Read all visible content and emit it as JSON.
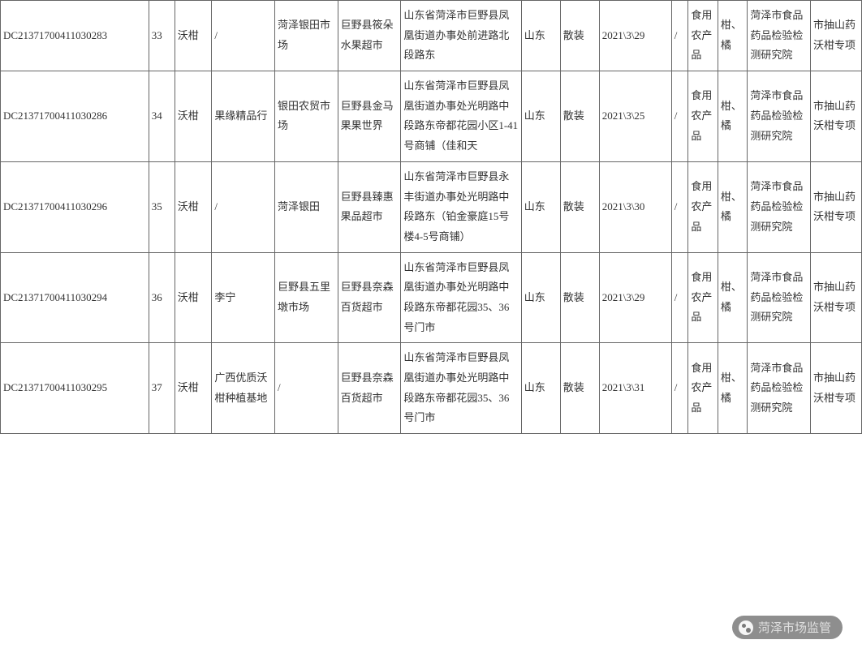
{
  "watermark": {
    "label": "菏泽市场监管"
  },
  "table": {
    "columns": [
      {
        "class": "col-0"
      },
      {
        "class": "col-1"
      },
      {
        "class": "col-2"
      },
      {
        "class": "col-3"
      },
      {
        "class": "col-4"
      },
      {
        "class": "col-5"
      },
      {
        "class": "col-6"
      },
      {
        "class": "col-7"
      },
      {
        "class": "col-8"
      },
      {
        "class": "col-9"
      },
      {
        "class": "col-10"
      },
      {
        "class": "col-11"
      },
      {
        "class": "col-12"
      },
      {
        "class": "col-13"
      },
      {
        "class": "col-14"
      }
    ],
    "rows": [
      {
        "id": "DC21371700411030283",
        "seq": "33",
        "product": "沃柑",
        "producer": "/",
        "market": "菏泽银田市场",
        "vendor": "巨野县筱朵水果超市",
        "address": "山东省菏泽市巨野县凤凰街道办事处前进路北段路东",
        "province": "山东",
        "pack": "散装",
        "date": "2021\\3\\29",
        "spec": "/",
        "category": "食用农产品",
        "subcat": "柑、橘",
        "agency": "菏泽市食品药品检验检测研究院",
        "task": "市抽山药沃柑专项"
      },
      {
        "id": "DC21371700411030286",
        "seq": "34",
        "product": "沃柑",
        "producer": "果缘精品行",
        "market": "银田农贸市场",
        "vendor": "巨野县金马果果世界",
        "address": "山东省菏泽市巨野县凤凰街道办事处光明路中段路东帝都花园小区1-41号商铺（佳和天",
        "province": "山东",
        "pack": "散装",
        "date": "2021\\3\\25",
        "spec": "/",
        "category": "食用农产品",
        "subcat": "柑、橘",
        "agency": "菏泽市食品药品检验检测研究院",
        "task": "市抽山药沃柑专项"
      },
      {
        "id": "DC21371700411030296",
        "seq": "35",
        "product": "沃柑",
        "producer": "/",
        "market": "菏泽银田",
        "vendor": "巨野县臻惠果品超市",
        "address": "山东省菏泽市巨野县永丰街道办事处光明路中段路东（铂金豪庭15号楼4-5号商铺）",
        "province": "山东",
        "pack": "散装",
        "date": "2021\\3\\30",
        "spec": "/",
        "category": "食用农产品",
        "subcat": "柑、橘",
        "agency": "菏泽市食品药品检验检测研究院",
        "task": "市抽山药沃柑专项"
      },
      {
        "id": "DC21371700411030294",
        "seq": "36",
        "product": "沃柑",
        "producer": "李宁",
        "market": "巨野县五里墩市场",
        "vendor": "巨野县奈森百货超市",
        "address": "山东省菏泽市巨野县凤凰街道办事处光明路中段路东帝都花园35、36号门市",
        "province": "山东",
        "pack": "散装",
        "date": "2021\\3\\29",
        "spec": "/",
        "category": "食用农产品",
        "subcat": "柑、橘",
        "agency": "菏泽市食品药品检验检测研究院",
        "task": "市抽山药沃柑专项"
      },
      {
        "id": "DC21371700411030295",
        "seq": "37",
        "product": "沃柑",
        "producer": "广西优质沃柑种植基地",
        "market": "/",
        "vendor": "巨野县奈森百货超市",
        "address": "山东省菏泽市巨野县凤凰街道办事处光明路中段路东帝都花园35、36号门市",
        "province": "山东",
        "pack": "散装",
        "date": "2021\\3\\31",
        "spec": "/",
        "category": "食用农产品",
        "subcat": "柑、橘",
        "agency": "菏泽市食品药品检验检测研究院",
        "task": "市抽山药沃柑专项"
      }
    ]
  }
}
